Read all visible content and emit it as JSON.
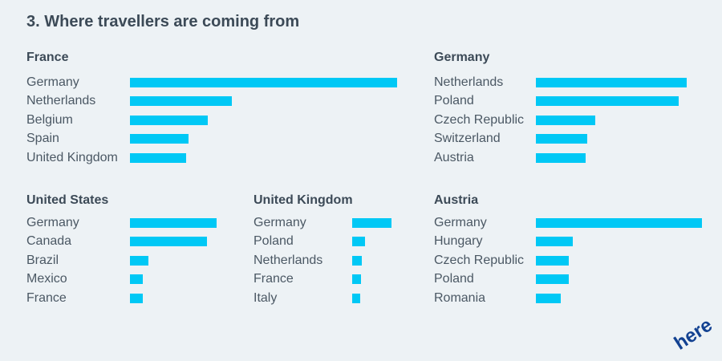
{
  "title": "3. Where travellers are coming from",
  "logo_text": "here",
  "colors": {
    "bar": "#00c8f5",
    "background": "#edf2f5",
    "text": "#3c4a57",
    "logo": "#124191"
  },
  "chart_data": [
    {
      "type": "bar",
      "orientation": "horizontal",
      "title": "France",
      "categories": [
        "Germany",
        "Netherlands",
        "Belgium",
        "Spain",
        "United Kingdom"
      ],
      "values": [
        100,
        38,
        29,
        22,
        21
      ]
    },
    {
      "type": "bar",
      "orientation": "horizontal",
      "title": "Germany",
      "categories": [
        "Netherlands",
        "Poland",
        "Czech Republic",
        "Switzerland",
        "Austria"
      ],
      "values": [
        91,
        86,
        36,
        31,
        30
      ]
    },
    {
      "type": "bar",
      "orientation": "horizontal",
      "title": "United States",
      "categories": [
        "Germany",
        "Canada",
        "Brazil",
        "Mexico",
        "France"
      ],
      "values": [
        100,
        89,
        21,
        15,
        15
      ]
    },
    {
      "type": "bar",
      "orientation": "horizontal",
      "title": "United Kingdom",
      "categories": [
        "Germany",
        "Poland",
        "Netherlands",
        "France",
        "Italy"
      ],
      "values": [
        100,
        33,
        24,
        22,
        21
      ]
    },
    {
      "type": "bar",
      "orientation": "horizontal",
      "title": "Austria",
      "categories": [
        "Germany",
        "Hungary",
        "Czech Republic",
        "Poland",
        "Romania"
      ],
      "values": [
        100,
        22,
        20,
        20,
        15
      ]
    }
  ]
}
